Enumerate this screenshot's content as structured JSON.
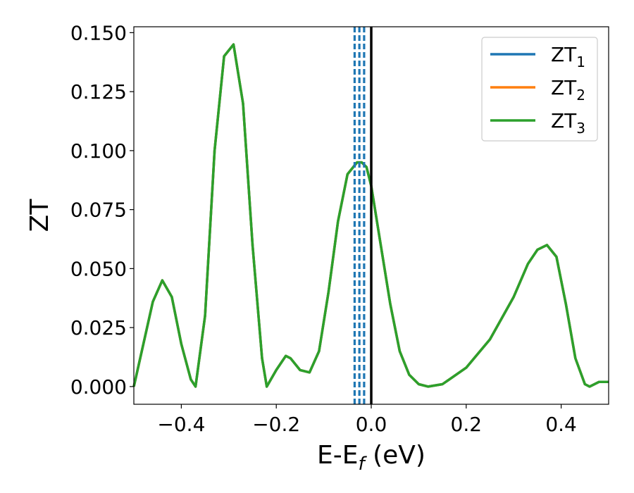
{
  "chart_data": {
    "type": "line",
    "xlabel": "E-E",
    "xlabel_sub": "f",
    "xlabel_unit": " (eV)",
    "ylabel": "ZT",
    "xlim": [
      -0.5,
      0.5
    ],
    "ylim": [
      -0.0075,
      0.1525
    ],
    "x_ticks": [
      -0.4,
      -0.2,
      0.0,
      0.2,
      0.4
    ],
    "x_tick_labels": [
      "−0.4",
      "−0.2",
      "0.0",
      "0.2",
      "0.4"
    ],
    "y_ticks": [
      0.0,
      0.025,
      0.05,
      0.075,
      0.1,
      0.125,
      0.15
    ],
    "y_tick_labels": [
      "0.000",
      "0.025",
      "0.050",
      "0.075",
      "0.100",
      "0.125",
      "0.150"
    ],
    "grid": false,
    "legend_position": "top-right",
    "series": [
      {
        "name": "ZT",
        "sub": "1",
        "color": "#1f77b4",
        "x": [
          -0.5,
          -0.48,
          -0.46,
          -0.44,
          -0.42,
          -0.4,
          -0.38,
          -0.37,
          -0.35,
          -0.33,
          -0.31,
          -0.29,
          -0.27,
          -0.25,
          -0.23,
          -0.22,
          -0.2,
          -0.18,
          -0.17,
          -0.15,
          -0.13,
          -0.11,
          -0.09,
          -0.07,
          -0.05,
          -0.03,
          -0.02,
          -0.01,
          0.0,
          0.02,
          0.04,
          0.06,
          0.08,
          0.1,
          0.12,
          0.15,
          0.2,
          0.25,
          0.3,
          0.33,
          0.35,
          0.37,
          0.39,
          0.41,
          0.43,
          0.45,
          0.46,
          0.48,
          0.5
        ],
        "y": [
          0.0,
          0.018,
          0.036,
          0.045,
          0.038,
          0.018,
          0.003,
          0.0,
          0.03,
          0.1,
          0.14,
          0.145,
          0.12,
          0.06,
          0.012,
          0.0,
          0.007,
          0.013,
          0.012,
          0.007,
          0.006,
          0.015,
          0.04,
          0.07,
          0.09,
          0.095,
          0.095,
          0.093,
          0.085,
          0.06,
          0.035,
          0.015,
          0.005,
          0.001,
          0.0,
          0.001,
          0.008,
          0.02,
          0.038,
          0.052,
          0.058,
          0.06,
          0.055,
          0.035,
          0.012,
          0.001,
          0.0,
          0.002,
          0.002
        ]
      },
      {
        "name": "ZT",
        "sub": "2",
        "color": "#ff7f0e",
        "x": [
          -0.5,
          -0.48,
          -0.46,
          -0.44,
          -0.42,
          -0.4,
          -0.38,
          -0.37,
          -0.35,
          -0.33,
          -0.31,
          -0.29,
          -0.27,
          -0.25,
          -0.23,
          -0.22,
          -0.2,
          -0.18,
          -0.17,
          -0.15,
          -0.13,
          -0.11,
          -0.09,
          -0.07,
          -0.05,
          -0.03,
          -0.02,
          -0.01,
          0.0,
          0.02,
          0.04,
          0.06,
          0.08,
          0.1,
          0.12,
          0.15,
          0.2,
          0.25,
          0.3,
          0.33,
          0.35,
          0.37,
          0.39,
          0.41,
          0.43,
          0.45,
          0.46,
          0.48,
          0.5
        ],
        "y": [
          0.0,
          0.018,
          0.036,
          0.045,
          0.038,
          0.018,
          0.003,
          0.0,
          0.03,
          0.1,
          0.14,
          0.145,
          0.12,
          0.06,
          0.012,
          0.0,
          0.007,
          0.013,
          0.012,
          0.007,
          0.006,
          0.015,
          0.04,
          0.07,
          0.09,
          0.095,
          0.095,
          0.093,
          0.085,
          0.06,
          0.035,
          0.015,
          0.005,
          0.001,
          0.0,
          0.001,
          0.008,
          0.02,
          0.038,
          0.052,
          0.058,
          0.06,
          0.055,
          0.035,
          0.012,
          0.001,
          0.0,
          0.002,
          0.002
        ]
      },
      {
        "name": "ZT",
        "sub": "3",
        "color": "#2ca02c",
        "x": [
          -0.5,
          -0.48,
          -0.46,
          -0.44,
          -0.42,
          -0.4,
          -0.38,
          -0.37,
          -0.35,
          -0.33,
          -0.31,
          -0.29,
          -0.27,
          -0.25,
          -0.23,
          -0.22,
          -0.2,
          -0.18,
          -0.17,
          -0.15,
          -0.13,
          -0.11,
          -0.09,
          -0.07,
          -0.05,
          -0.03,
          -0.02,
          -0.01,
          0.0,
          0.02,
          0.04,
          0.06,
          0.08,
          0.1,
          0.12,
          0.15,
          0.2,
          0.25,
          0.3,
          0.33,
          0.35,
          0.37,
          0.39,
          0.41,
          0.43,
          0.45,
          0.46,
          0.48,
          0.5
        ],
        "y": [
          0.0,
          0.018,
          0.036,
          0.045,
          0.038,
          0.018,
          0.003,
          0.0,
          0.03,
          0.1,
          0.14,
          0.145,
          0.12,
          0.06,
          0.012,
          0.0,
          0.007,
          0.013,
          0.012,
          0.007,
          0.006,
          0.015,
          0.04,
          0.07,
          0.09,
          0.095,
          0.095,
          0.093,
          0.085,
          0.06,
          0.035,
          0.015,
          0.005,
          0.001,
          0.0,
          0.001,
          0.008,
          0.02,
          0.038,
          0.052,
          0.058,
          0.06,
          0.055,
          0.035,
          0.012,
          0.001,
          0.0,
          0.002,
          0.002
        ]
      }
    ],
    "vertical_lines": [
      {
        "x": -0.035,
        "style": "dashed",
        "color": "#1f77b4"
      },
      {
        "x": -0.025,
        "style": "dashed",
        "color": "#1f77b4"
      },
      {
        "x": -0.015,
        "style": "dashed",
        "color": "#1f77b4"
      },
      {
        "x": 0.0,
        "style": "solid",
        "color": "#000000"
      }
    ]
  }
}
